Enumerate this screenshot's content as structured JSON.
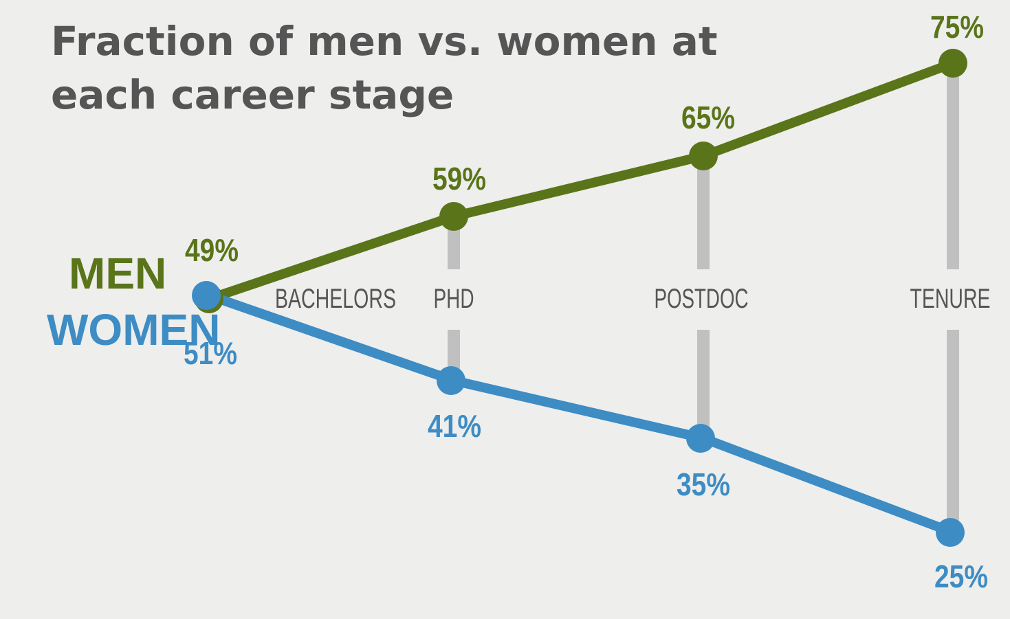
{
  "chart_data": {
    "type": "line",
    "title_lines": [
      "Fraction of men vs. women at",
      "each career stage"
    ],
    "categories": [
      "BACHELORS",
      "PHD",
      "POSTDOC",
      "TENURE"
    ],
    "ylim": [
      0,
      100
    ],
    "grid": false,
    "series": [
      {
        "name": "MEN",
        "color": "#5a7419",
        "values": [
          49,
          59,
          65,
          75
        ],
        "labels": [
          "49%",
          "59%",
          "65%",
          "75%"
        ]
      },
      {
        "name": "WOMEN",
        "color": "#3d8cc4",
        "values": [
          51,
          41,
          35,
          25
        ],
        "labels": [
          "51%",
          "41%",
          "35%",
          "25%"
        ]
      }
    ],
    "connector_color": "#c0c0c0"
  }
}
